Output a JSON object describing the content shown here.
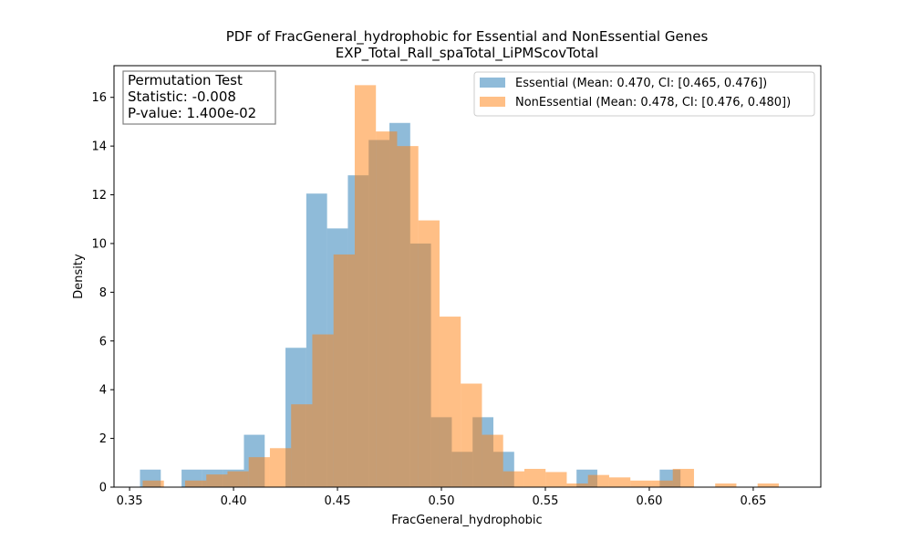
{
  "chart_data": {
    "type": "bar",
    "title": "PDF of FracGeneral_hydrophobic for Essential and NonEssential Genes",
    "subtitle": "EXP_Total_Rall_spaTotal_LiPMScovTotal",
    "xlabel": "FracGeneral_hydrophobic",
    "ylabel": "Density",
    "xlim": [
      0.3425,
      0.6825
    ],
    "ylim": [
      0,
      17.3
    ],
    "xticks": [
      0.35,
      0.4,
      0.45,
      0.5,
      0.55,
      0.6,
      0.65
    ],
    "xtick_labels": [
      "0.35",
      "0.40",
      "0.45",
      "0.50",
      "0.55",
      "0.60",
      "0.65"
    ],
    "yticks": [
      0,
      2,
      4,
      6,
      8,
      10,
      12,
      14,
      16
    ],
    "ytick_labels": [
      "0",
      "2",
      "4",
      "6",
      "8",
      "10",
      "12",
      "14",
      "16"
    ],
    "grid": false,
    "legend_position": "upper right",
    "annotation": {
      "lines": [
        "Permutation Test",
        "Statistic: -0.008",
        "P-value: 1.400e-02"
      ]
    },
    "series": [
      {
        "name": "Essential (Mean: 0.470, CI: [0.465, 0.476])",
        "color": "#1f77b4",
        "bins": [
          [
            0.355,
            0.365,
            0.72
          ],
          [
            0.375,
            0.385,
            0.72
          ],
          [
            0.385,
            0.395,
            0.72
          ],
          [
            0.395,
            0.405,
            0.72
          ],
          [
            0.405,
            0.415,
            2.15
          ],
          [
            0.425,
            0.435,
            5.72
          ],
          [
            0.435,
            0.445,
            12.05
          ],
          [
            0.445,
            0.455,
            10.62
          ],
          [
            0.455,
            0.465,
            12.8
          ],
          [
            0.465,
            0.475,
            14.25
          ],
          [
            0.475,
            0.485,
            14.95
          ],
          [
            0.485,
            0.495,
            10.0
          ],
          [
            0.495,
            0.505,
            2.87
          ],
          [
            0.505,
            0.515,
            1.45
          ],
          [
            0.515,
            0.525,
            2.87
          ],
          [
            0.525,
            0.535,
            1.45
          ],
          [
            0.565,
            0.575,
            0.72
          ],
          [
            0.605,
            0.615,
            0.72
          ]
        ]
      },
      {
        "name": "NonEssential (Mean: 0.478, CI: [0.476, 0.480])",
        "color": "#ff7f0e",
        "bins": [
          [
            0.3563,
            0.3665,
            0.27
          ],
          [
            0.3767,
            0.3869,
            0.27
          ],
          [
            0.3869,
            0.3971,
            0.52
          ],
          [
            0.3971,
            0.4073,
            0.65
          ],
          [
            0.4073,
            0.4175,
            1.23
          ],
          [
            0.4175,
            0.4277,
            1.6
          ],
          [
            0.4277,
            0.4379,
            3.4
          ],
          [
            0.4379,
            0.4481,
            6.27
          ],
          [
            0.4481,
            0.4583,
            9.55
          ],
          [
            0.4583,
            0.4685,
            16.5
          ],
          [
            0.4685,
            0.4787,
            14.6
          ],
          [
            0.4787,
            0.4889,
            14.0
          ],
          [
            0.4889,
            0.4991,
            10.95
          ],
          [
            0.4991,
            0.5093,
            7.0
          ],
          [
            0.5093,
            0.5195,
            4.25
          ],
          [
            0.5195,
            0.5297,
            2.15
          ],
          [
            0.5297,
            0.5399,
            0.65
          ],
          [
            0.5399,
            0.5501,
            0.75
          ],
          [
            0.5501,
            0.5603,
            0.62
          ],
          [
            0.5603,
            0.5705,
            0.15
          ],
          [
            0.5705,
            0.5807,
            0.5
          ],
          [
            0.5807,
            0.5909,
            0.4
          ],
          [
            0.5909,
            0.6011,
            0.27
          ],
          [
            0.6011,
            0.6113,
            0.27
          ],
          [
            0.6113,
            0.6215,
            0.75
          ],
          [
            0.6317,
            0.6419,
            0.15
          ],
          [
            0.6521,
            0.6623,
            0.15
          ]
        ]
      }
    ]
  }
}
